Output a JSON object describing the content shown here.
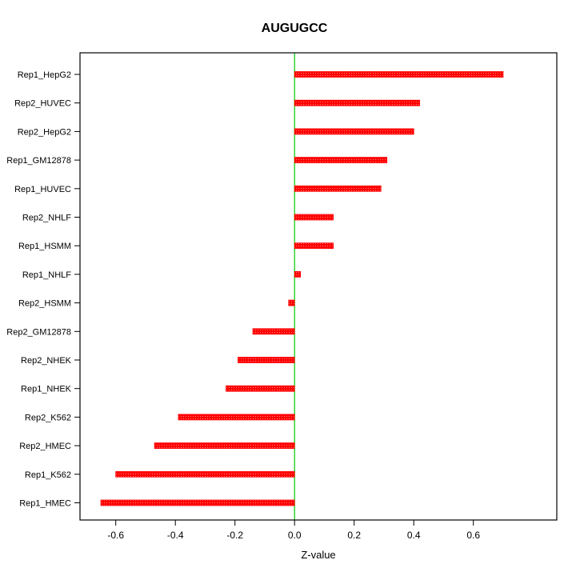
{
  "chart_data": {
    "type": "bar",
    "orientation": "horizontal",
    "title": "AUGUGCC",
    "xlabel": "Z-value",
    "ylabel": "",
    "categories": [
      "Rep1_HepG2",
      "Rep2_HUVEC",
      "Rep2_HepG2",
      "Rep1_GM12878",
      "Rep1_HUVEC",
      "Rep2_NHLF",
      "Rep1_HSMM",
      "Rep1_NHLF",
      "Rep2_HSMM",
      "Rep2_GM12878",
      "Rep2_NHEK",
      "Rep1_NHEK",
      "Rep2_K562",
      "Rep2_HMEC",
      "Rep1_K562",
      "Rep1_HMEC"
    ],
    "values": [
      0.7,
      0.42,
      0.4,
      0.31,
      0.29,
      0.13,
      0.13,
      0.02,
      -0.02,
      -0.14,
      -0.19,
      -0.23,
      -0.39,
      -0.47,
      -0.6,
      -0.65
    ],
    "xlim": [
      -0.72,
      0.88
    ],
    "xticks": [
      -0.6,
      -0.4,
      -0.2,
      0.0,
      0.2,
      0.4,
      0.6
    ],
    "xtick_labels": [
      "-0.6",
      "-0.4",
      "-0.2",
      "0.0",
      "0.2",
      "0.4",
      "0.6"
    ],
    "bar_color": "#FF0000",
    "bar_dot_color": "#FF8080",
    "zero_line_color": "#00CC00",
    "axis_color": "#000000",
    "grid": false,
    "legend": "none"
  }
}
